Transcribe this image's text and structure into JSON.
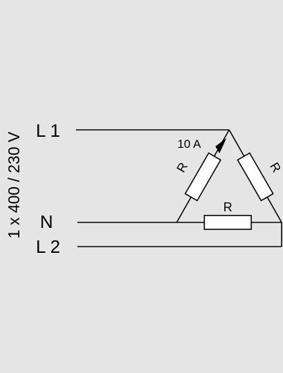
{
  "supply": {
    "voltage_label": "1 x 400 / 230 V"
  },
  "lines": {
    "l1": "L 1",
    "n": "N",
    "l2": "L 2"
  },
  "resistors": {
    "left": "R",
    "right": "R",
    "bottom": "R"
  },
  "current": {
    "label": "10 A"
  },
  "colors": {
    "background": "#e5e5e5",
    "stroke": "#000000",
    "resistor_fill": "#ffffff"
  }
}
